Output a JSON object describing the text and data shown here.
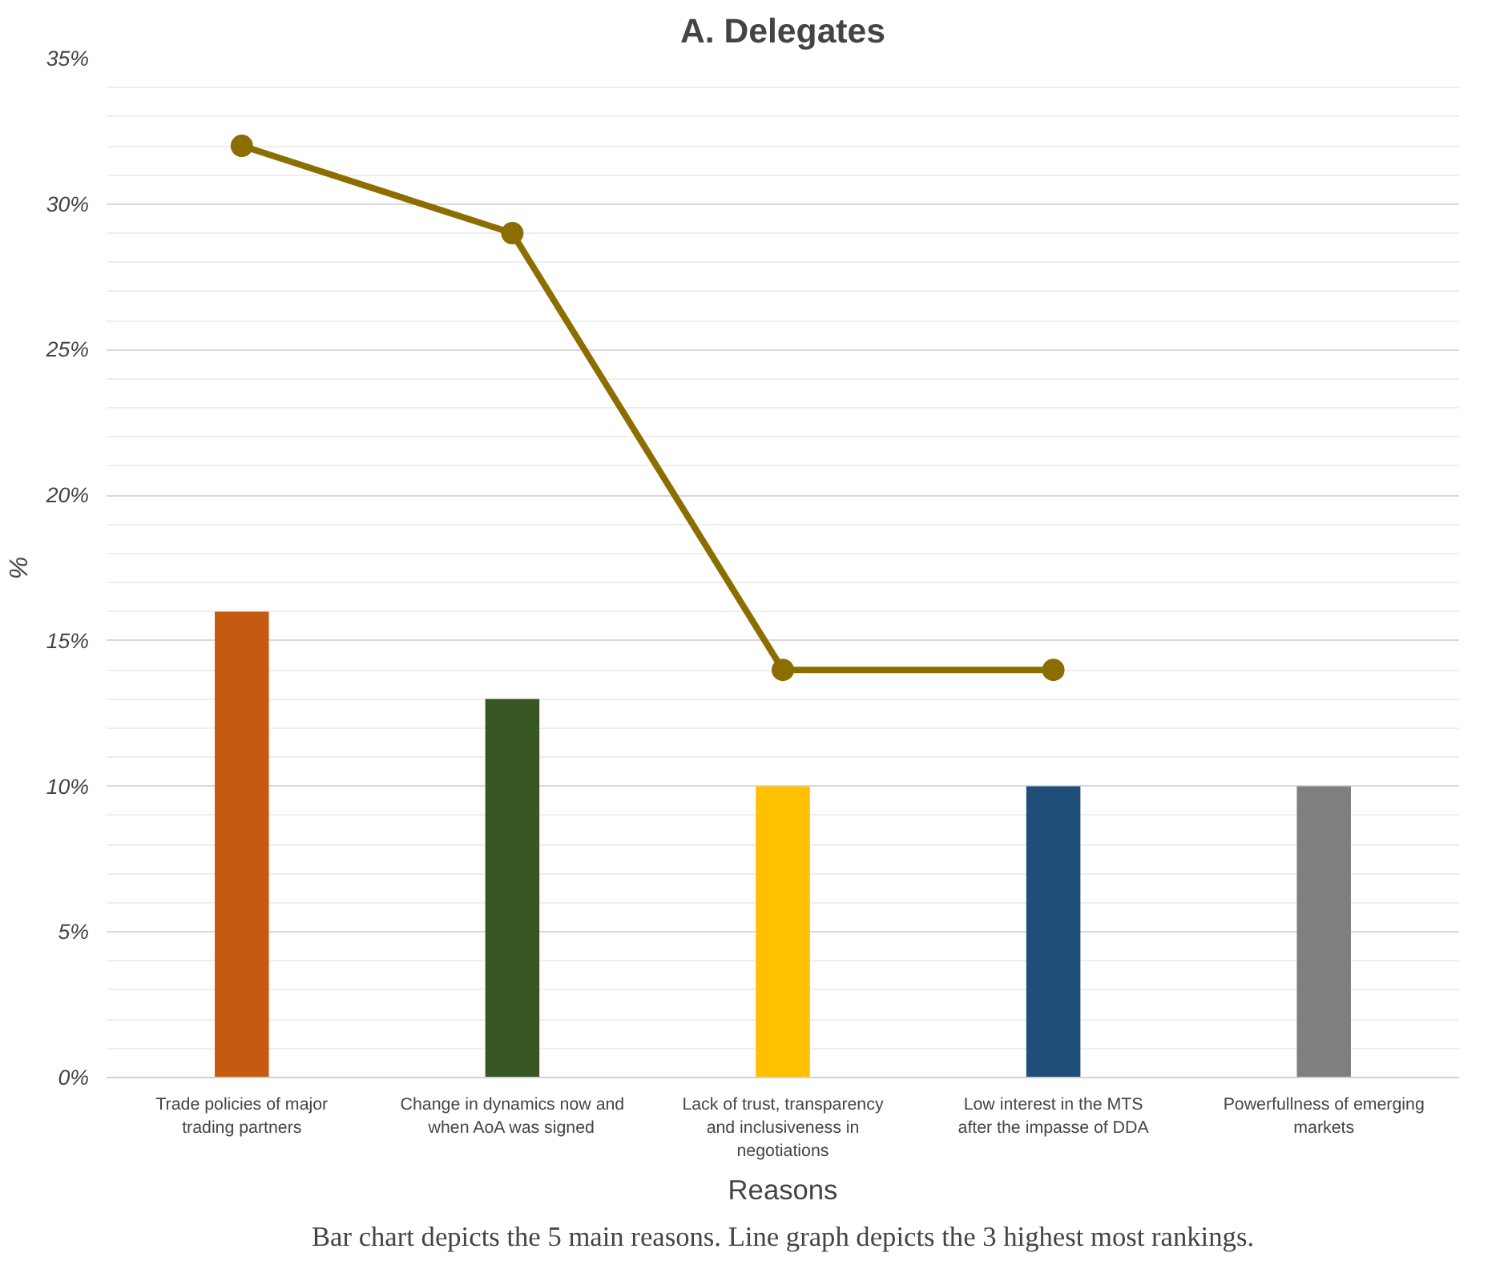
{
  "chart_data": {
    "type": "bar",
    "title": "A. Delegates",
    "xlabel": "Reasons",
    "ylabel": "%",
    "categories": [
      "Trade policies of major trading partners",
      "Change in dynamics now and when AoA was signed",
      "Lack of trust, transparency and inclusiveness in negotiations",
      "Low interest in the MTS after the impasse of DDA",
      "Powerfullness of emerging markets"
    ],
    "series": [
      {
        "values": [
          16,
          13,
          10,
          10,
          10
        ],
        "colors": [
          "#c55a11",
          "#375623",
          "#ffc000",
          "#1f4e79",
          "#7f7f7f"
        ]
      },
      {
        "type": "line",
        "values": [
          32,
          29,
          14,
          14,
          null
        ],
        "color": "#8c6d00",
        "marker": "circle",
        "line_style": "solid"
      }
    ],
    "ylim": [
      0,
      35
    ],
    "yticks": [
      {
        "value": 0,
        "label": "0%"
      },
      {
        "value": 5,
        "label": "5%"
      },
      {
        "value": 10,
        "label": "10%"
      },
      {
        "value": 15,
        "label": "15%"
      },
      {
        "value": 20,
        "label": "20%"
      },
      {
        "value": 25,
        "label": "25%"
      },
      {
        "value": 30,
        "label": "30%"
      },
      {
        "value": 35,
        "label": "35%"
      }
    ],
    "grid": "y",
    "annotations": [
      "Bar chart depicts the 5 main reasons. Line graph depicts the 3 highest most rankings."
    ]
  }
}
